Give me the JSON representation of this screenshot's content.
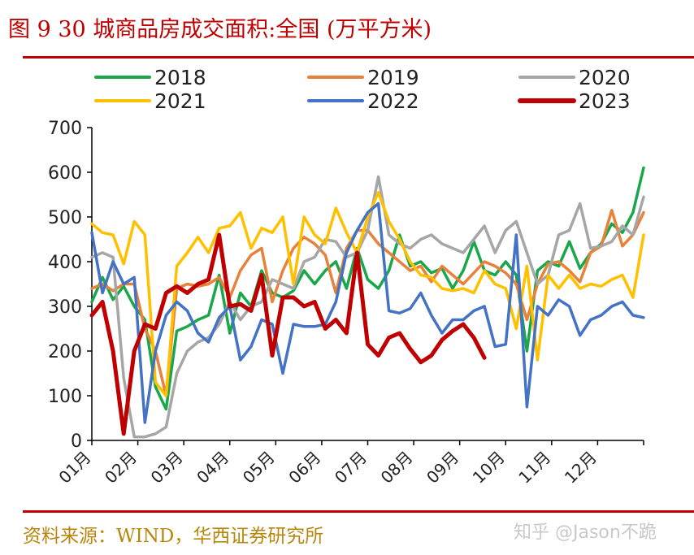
{
  "page_title": "图 9 30 城商品房成交面积:全国 (万平方米)",
  "source_note": "资料来源：WIND，华西证券研究所",
  "watermark": "知乎 @Jason不跪",
  "chart_data": {
    "type": "line",
    "title": "",
    "xlabel": "",
    "ylabel": "",
    "ylim": [
      0,
      700
    ],
    "yticks": [
      "0",
      "100",
      "200",
      "300",
      "400",
      "500",
      "600",
      "700"
    ],
    "x_tick_labels": [
      "01月",
      "02月",
      "03月",
      "04月",
      "05月",
      "06月",
      "07月",
      "08月",
      "09月",
      "10月",
      "11月",
      "12月"
    ],
    "x_unit": "week of year",
    "x_range": [
      1,
      53
    ],
    "legend_position": "top",
    "grid": false,
    "series": [
      {
        "name": "2018",
        "color": "#1aa74a",
        "values": [
          310,
          365,
          315,
          345,
          300,
          270,
          120,
          70,
          245,
          255,
          270,
          280,
          370,
          240,
          330,
          300,
          380,
          330,
          320,
          335,
          380,
          350,
          380,
          400,
          340,
          430,
          360,
          340,
          380,
          460,
          390,
          400,
          375,
          385,
          340,
          380,
          445,
          380,
          370,
          400,
          370,
          200,
          380,
          400,
          390,
          445,
          385,
          420,
          440,
          485,
          465,
          510,
          610
        ]
      },
      {
        "name": "2019",
        "color": "#e8823a",
        "values": [
          340,
          350,
          335,
          350,
          350,
          250,
          200,
          100,
          340,
          350,
          345,
          350,
          365,
          320,
          380,
          415,
          430,
          310,
          380,
          430,
          455,
          440,
          415,
          330,
          430,
          470,
          470,
          440,
          420,
          400,
          380,
          390,
          355,
          390,
          370,
          350,
          375,
          400,
          390,
          375,
          350,
          270,
          350,
          395,
          400,
          380,
          355,
          420,
          435,
          515,
          435,
          460,
          510
        ]
      },
      {
        "name": "2020",
        "color": "#a6a6a6",
        "values": [
          410,
          420,
          410,
          140,
          8,
          8,
          15,
          30,
          150,
          200,
          220,
          230,
          260,
          310,
          270,
          300,
          310,
          360,
          350,
          340,
          400,
          410,
          450,
          445,
          410,
          420,
          470,
          590,
          460,
          440,
          430,
          450,
          460,
          440,
          430,
          420,
          450,
          480,
          420,
          470,
          490,
          420,
          350,
          370,
          460,
          470,
          530,
          430,
          435,
          445,
          480,
          460,
          545
        ]
      },
      {
        "name": "2021",
        "color": "#ffc000",
        "values": [
          485,
          465,
          460,
          395,
          490,
          460,
          130,
          100,
          390,
          420,
          455,
          420,
          475,
          480,
          510,
          430,
          475,
          465,
          500,
          350,
          500,
          460,
          440,
          520,
          465,
          420,
          500,
          555,
          490,
          450,
          400,
          370,
          365,
          340,
          335,
          340,
          330,
          380,
          350,
          340,
          250,
          390,
          180,
          370,
          340,
          370,
          340,
          350,
          345,
          360,
          370,
          320,
          460
        ]
      },
      {
        "name": "2022",
        "color": "#4472c4",
        "values": [
          465,
          330,
          400,
          350,
          365,
          40,
          200,
          280,
          310,
          290,
          240,
          220,
          275,
          300,
          180,
          210,
          270,
          260,
          150,
          260,
          255,
          255,
          260,
          310,
          420,
          470,
          510,
          530,
          290,
          285,
          295,
          330,
          280,
          240,
          270,
          270,
          290,
          300,
          210,
          215,
          460,
          75,
          300,
          280,
          315,
          300,
          235,
          270,
          280,
          300,
          310,
          280,
          275
        ]
      },
      {
        "name": "2023",
        "color": "#c00000",
        "values": [
          280,
          310,
          200,
          15,
          200,
          260,
          250,
          330,
          345,
          330,
          350,
          360,
          460,
          300,
          305,
          290,
          370,
          190,
          320,
          320,
          300,
          310,
          250,
          270,
          240,
          420,
          215,
          190,
          230,
          240,
          205,
          175,
          190,
          225,
          245,
          260,
          230,
          185
        ]
      }
    ]
  }
}
